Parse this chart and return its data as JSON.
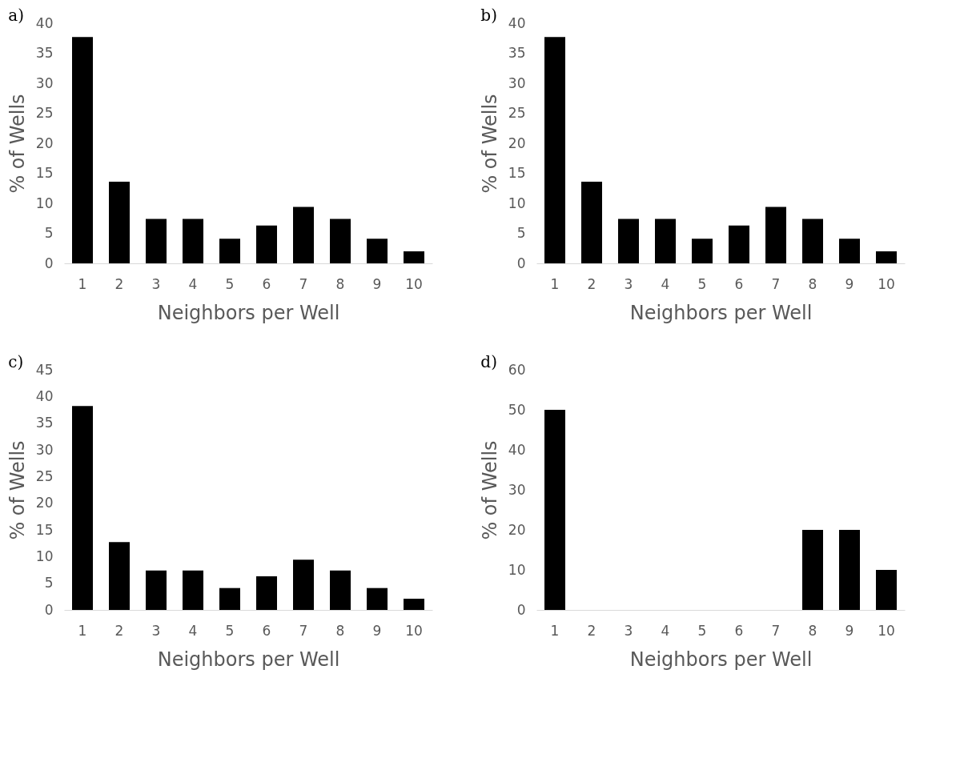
{
  "chart_data": [
    {
      "type": "bar",
      "title": "a)",
      "xlabel": "Neighbors per Well",
      "ylabel": "% of Wells",
      "categories": [
        "1",
        "2",
        "3",
        "4",
        "5",
        "6",
        "7",
        "8",
        "9",
        "10"
      ],
      "values": [
        37.7,
        13.6,
        7.4,
        7.4,
        4.1,
        6.3,
        9.4,
        7.4,
        4.1,
        2.0
      ],
      "color": "#000000",
      "ylim": [
        0,
        40
      ],
      "yticks": [
        0,
        5,
        10,
        15,
        20,
        25,
        30,
        35,
        40
      ],
      "grid": false
    },
    {
      "type": "bar",
      "title": "b)",
      "xlabel": "Neighbors per Well",
      "ylabel": "% of Wells",
      "categories": [
        "1",
        "2",
        "3",
        "4",
        "5",
        "6",
        "7",
        "8",
        "9",
        "10"
      ],
      "values": [
        37.7,
        13.6,
        7.4,
        7.4,
        4.1,
        6.3,
        9.4,
        7.4,
        4.1,
        2.0
      ],
      "color": "#000000",
      "ylim": [
        0,
        40
      ],
      "yticks": [
        0,
        5,
        10,
        15,
        20,
        25,
        30,
        35,
        40
      ],
      "grid": false
    },
    {
      "type": "bar",
      "title": "c)",
      "xlabel": "Neighbors per Well",
      "ylabel": "% of Wells",
      "categories": [
        "1",
        "2",
        "3",
        "4",
        "5",
        "6",
        "7",
        "8",
        "9",
        "10"
      ],
      "values": [
        38.2,
        12.7,
        7.4,
        7.4,
        4.1,
        6.3,
        9.4,
        7.4,
        4.1,
        2.1
      ],
      "color": "#000000",
      "ylim": [
        0,
        45
      ],
      "yticks": [
        0,
        5,
        10,
        15,
        20,
        25,
        30,
        35,
        40,
        45
      ],
      "grid": false
    },
    {
      "type": "bar",
      "title": "d)",
      "xlabel": "Neighbors per Well",
      "ylabel": "% of Wells",
      "categories": [
        "1",
        "2",
        "3",
        "4",
        "5",
        "6",
        "7",
        "8",
        "9",
        "10"
      ],
      "values": [
        50,
        0,
        0,
        0,
        0,
        0,
        0,
        20,
        20,
        10
      ],
      "color": "#000000",
      "ylim": [
        0,
        60
      ],
      "yticks": [
        0,
        10,
        20,
        30,
        40,
        50,
        60
      ],
      "grid": false
    }
  ]
}
